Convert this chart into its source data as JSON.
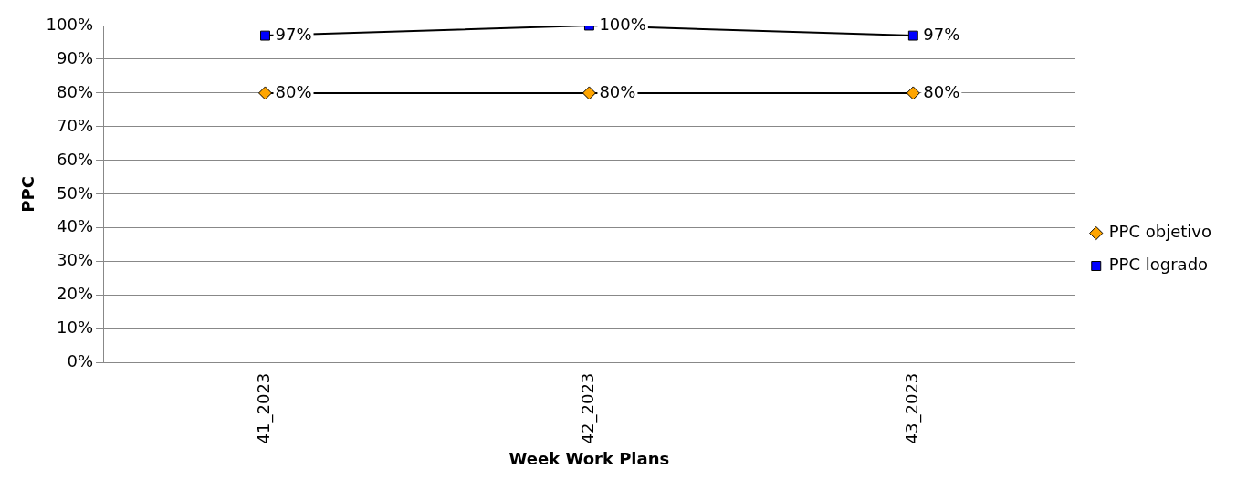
{
  "chart_data": {
    "type": "line",
    "xlabel": "Week Work Plans",
    "ylabel": "PPC",
    "categories": [
      "41_2023",
      "42_2023",
      "43_2023"
    ],
    "series": [
      {
        "name": "PPC objetivo",
        "color": "#ffa500",
        "marker": "diamond",
        "values": [
          80,
          80,
          80
        ],
        "value_labels": [
          "80%",
          "80%",
          "80%"
        ]
      },
      {
        "name": "PPC logrado",
        "color": "#0000ff",
        "marker": "square",
        "values": [
          97,
          100,
          97
        ],
        "value_labels": [
          "97%",
          "100%",
          "97%"
        ]
      }
    ],
    "ylim": [
      0,
      100
    ],
    "yticks": [
      {
        "value": 0,
        "label": "0%"
      },
      {
        "value": 10,
        "label": "10%"
      },
      {
        "value": 20,
        "label": "20%"
      },
      {
        "value": 30,
        "label": "30%"
      },
      {
        "value": 40,
        "label": "40%"
      },
      {
        "value": 50,
        "label": "50%"
      },
      {
        "value": 60,
        "label": "60%"
      },
      {
        "value": 70,
        "label": "70%"
      },
      {
        "value": 80,
        "label": "80%"
      },
      {
        "value": 90,
        "label": "90%"
      },
      {
        "value": 100,
        "label": "100%"
      }
    ],
    "grid": "y",
    "legend": "right",
    "line_style": "solid"
  }
}
